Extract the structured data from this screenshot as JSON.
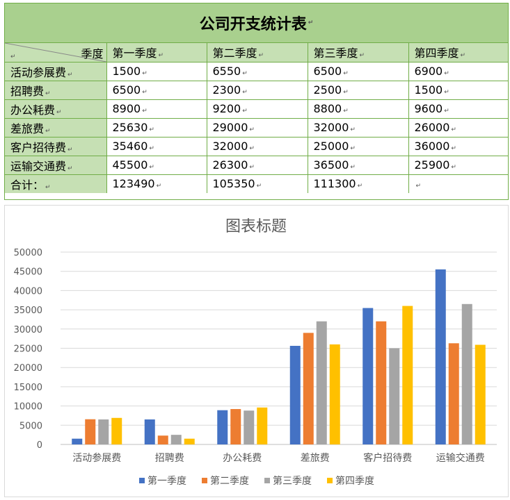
{
  "table": {
    "title": "公司开支统计表",
    "corner_label": "季度",
    "columns": [
      "第一季度",
      "第二季度",
      "第三季度",
      "第四季度"
    ],
    "rows": [
      {
        "label": "活动参展费",
        "values": [
          "1500",
          "6550",
          "6500",
          "6900"
        ]
      },
      {
        "label": "招聘费",
        "values": [
          "6500",
          "2300",
          "2500",
          "1500"
        ]
      },
      {
        "label": "办公耗费",
        "values": [
          "8900",
          "9200",
          "8800",
          "9600"
        ]
      },
      {
        "label": "差旅费",
        "values": [
          "25630",
          "29000",
          "32000",
          "26000"
        ]
      },
      {
        "label": "客户招待费",
        "values": [
          "35460",
          "32000",
          "25000",
          "36000"
        ]
      },
      {
        "label": "运输交通费",
        "values": [
          "45500",
          "26300",
          "36500",
          "25900"
        ]
      },
      {
        "label": "合计：",
        "values": [
          "123490",
          "105350",
          "111300",
          ""
        ]
      }
    ]
  },
  "chart_data": {
    "type": "bar",
    "title": "图表标题",
    "categories": [
      "活动参展费",
      "招聘费",
      "办公耗费",
      "差旅费",
      "客户招待费",
      "运输交通费"
    ],
    "series": [
      {
        "name": "第一季度",
        "color": "#4472c4",
        "values": [
          1500,
          6500,
          8900,
          25630,
          35460,
          45500
        ]
      },
      {
        "name": "第二季度",
        "color": "#ed7d31",
        "values": [
          6550,
          2300,
          9200,
          29000,
          32000,
          26300
        ]
      },
      {
        "name": "第三季度",
        "color": "#a5a5a5",
        "values": [
          6500,
          2500,
          8800,
          32000,
          25000,
          36500
        ]
      },
      {
        "name": "第四季度",
        "color": "#ffc000",
        "values": [
          6900,
          1500,
          9600,
          26000,
          36000,
          25900
        ]
      }
    ],
    "ylim": [
      0,
      50000
    ],
    "yticks": [
      "0",
      "5000",
      "10000",
      "15000",
      "20000",
      "25000",
      "30000",
      "35000",
      "40000",
      "45000",
      "50000"
    ],
    "grid": true,
    "legend_position": "bottom"
  }
}
